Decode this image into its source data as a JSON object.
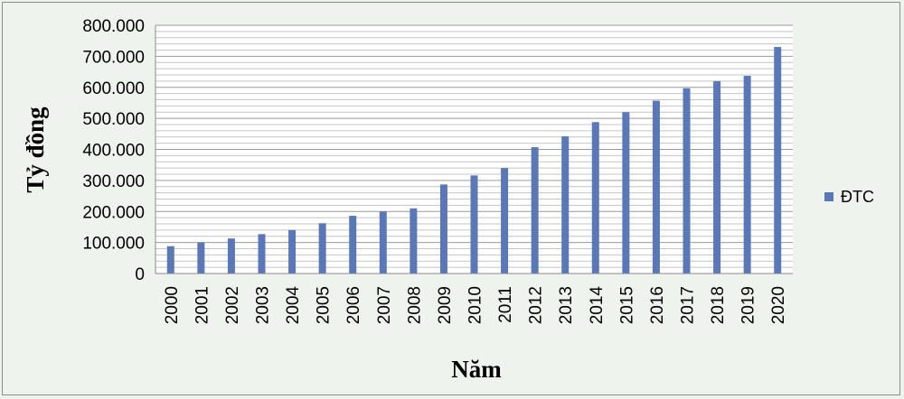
{
  "chart_data": {
    "type": "bar",
    "title": "",
    "xlabel": "Năm",
    "ylabel": "Tỷ đồng",
    "ylim": [
      0,
      800000
    ],
    "y_ticks": [
      0,
      100000,
      200000,
      300000,
      400000,
      500000,
      600000,
      700000,
      800000
    ],
    "y_tick_labels": [
      "0",
      "100.000",
      "200.000",
      "300.000",
      "400.000",
      "500.000",
      "600.000",
      "700.000",
      "800.000"
    ],
    "grid": true,
    "legend_position": "right",
    "categories": [
      "2000",
      "2001",
      "2002",
      "2003",
      "2004",
      "2005",
      "2006",
      "2007",
      "2008",
      "2009",
      "2010",
      "2011",
      "2012",
      "2013",
      "2014",
      "2015",
      "2016",
      "2017",
      "2018",
      "2019",
      "2020"
    ],
    "series": [
      {
        "name": "ĐTC",
        "color": "#5a78b8",
        "values": [
          88000,
          100000,
          113000,
          127000,
          140000,
          162000,
          186000,
          200000,
          210000,
          287000,
          316000,
          340000,
          407000,
          442000,
          488000,
          520000,
          557000,
          597000,
          620000,
          637000,
          730000
        ]
      }
    ]
  }
}
